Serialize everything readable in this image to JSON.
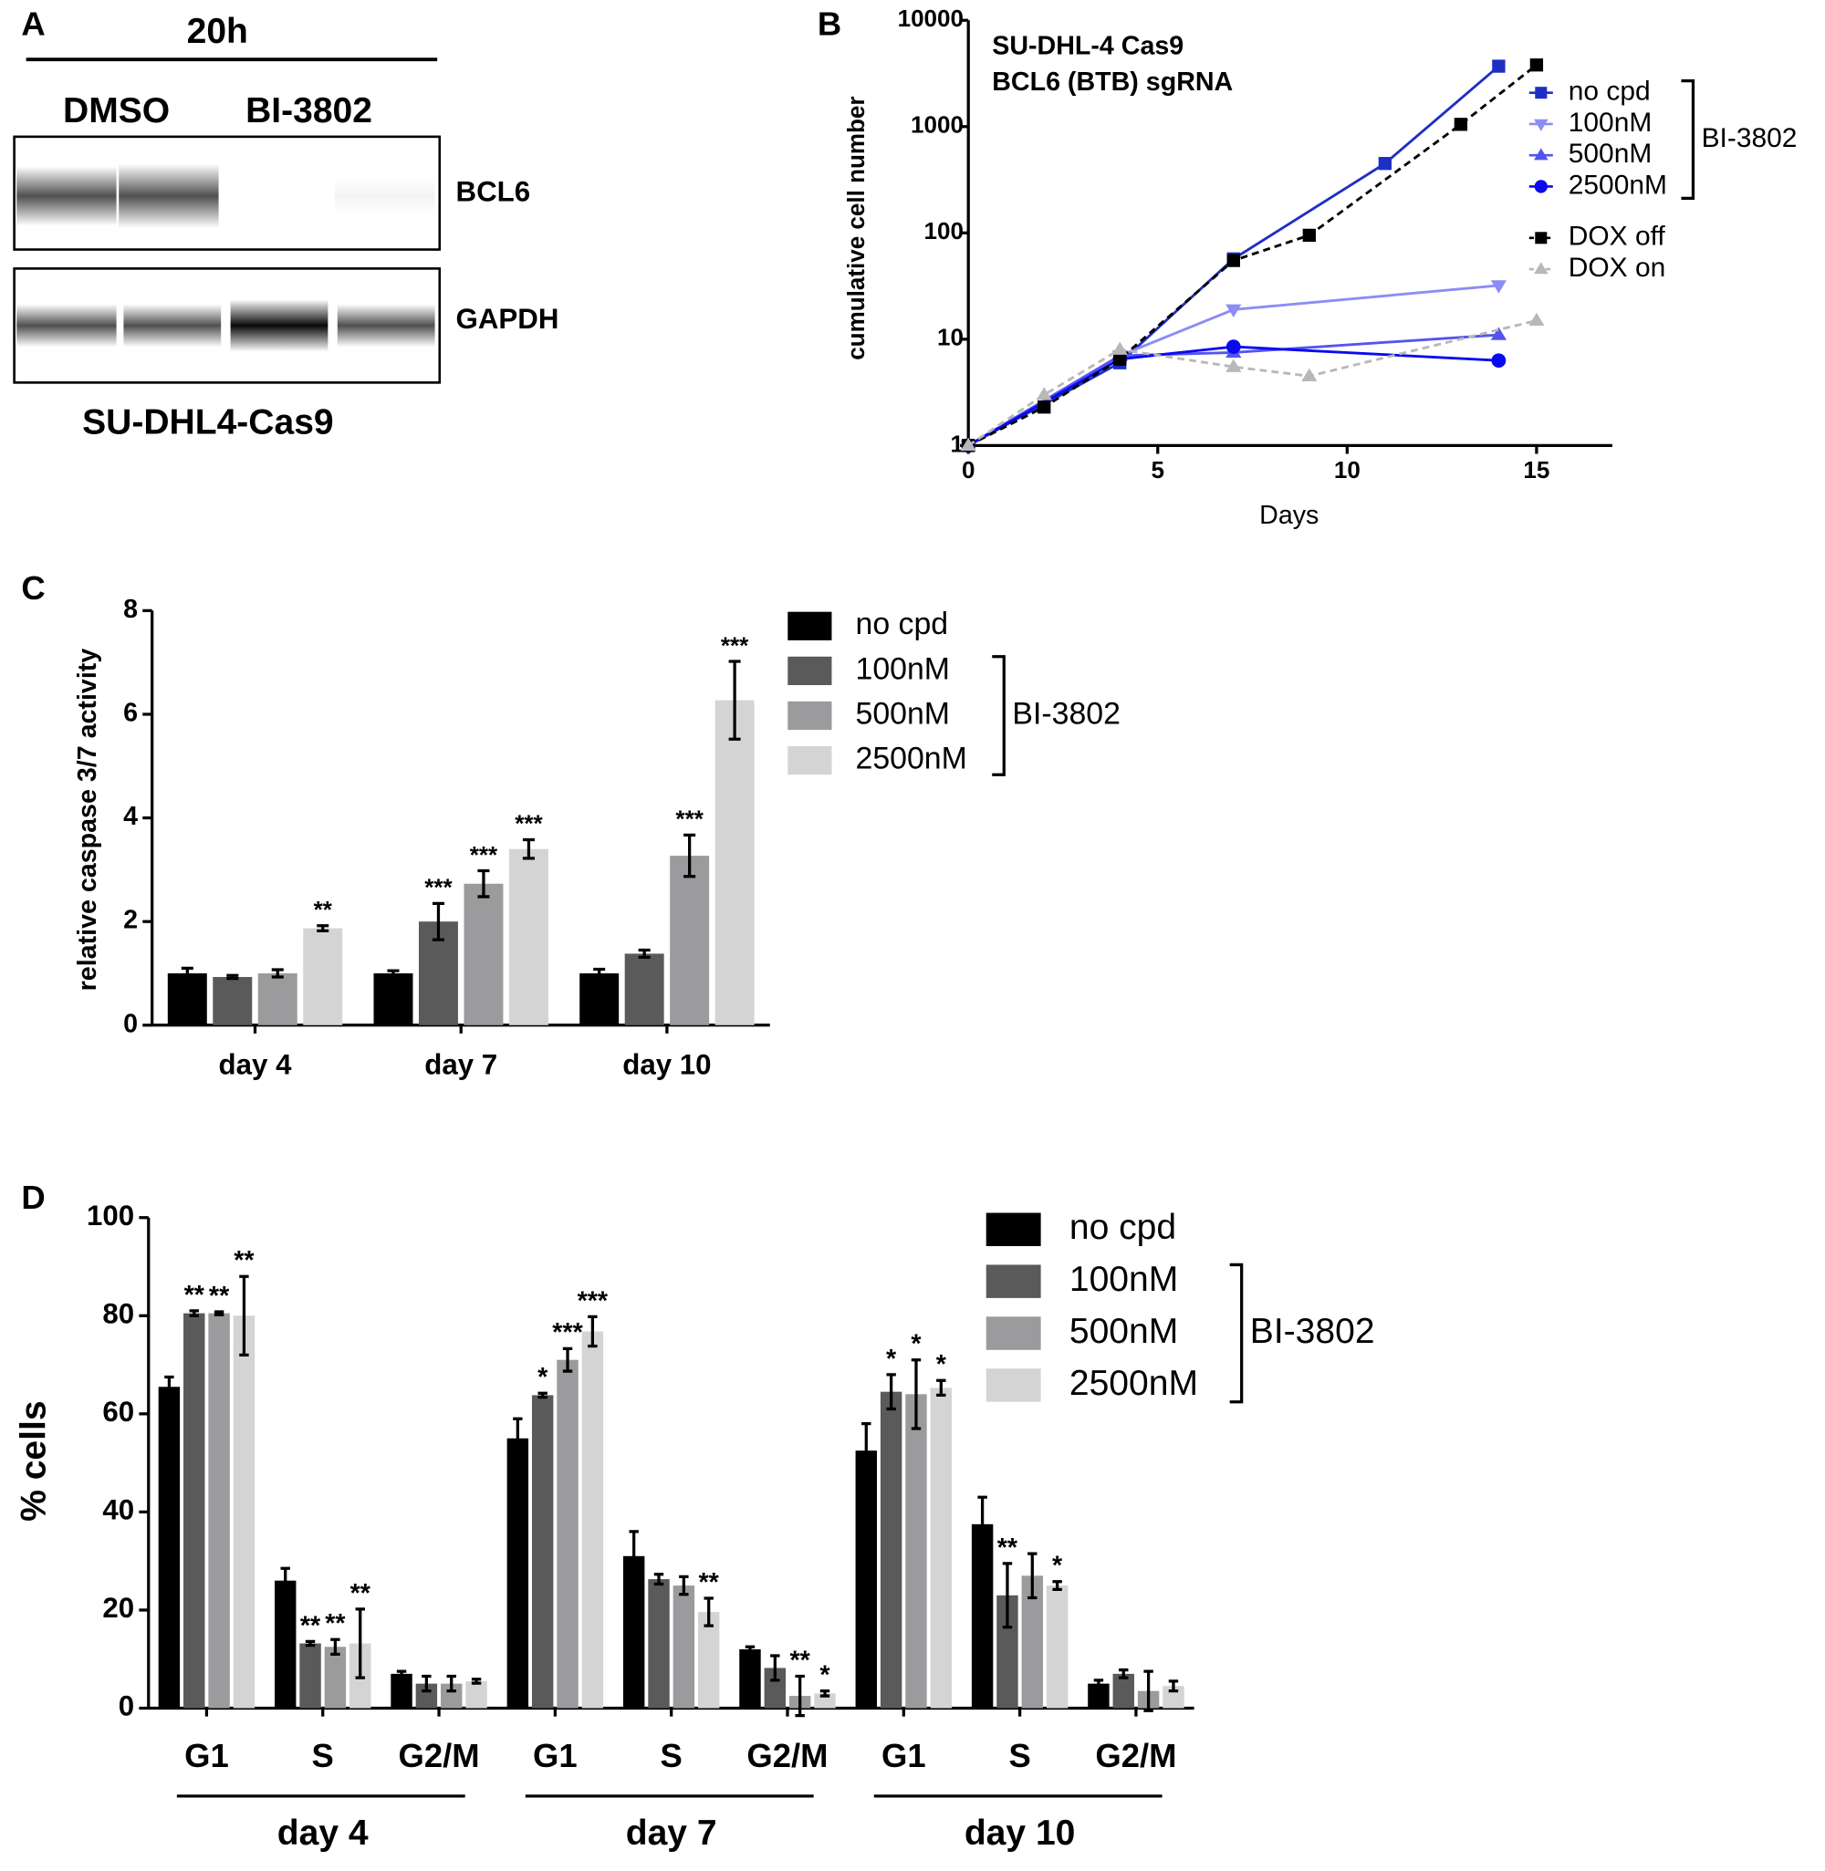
{
  "blot": {
    "panel": "A",
    "title": "20h",
    "lanes": [
      "DMSO",
      "BI-3802"
    ],
    "bands": [
      "BCL6",
      "GAPDH"
    ],
    "caption": "SU-DHL4-Cas9"
  },
  "chart_data": [
    {
      "type": "line",
      "panel": "B",
      "title": [
        "SU-DHL-4 Cas9",
        "BCL6 (BTB) sgRNA"
      ],
      "x_label": "Days",
      "y_label": "cumulative cell number",
      "log_y": true,
      "xlim": [
        0,
        17
      ],
      "xticks": [
        0,
        5,
        10,
        15
      ],
      "ylim": [
        1,
        10000
      ],
      "yticks": [
        1,
        10,
        100,
        1000,
        10000
      ],
      "bracket_label": "BI-3802",
      "series": [
        {
          "name": "no cpd",
          "color": "#1f2fc4",
          "marker": "square",
          "dashed": false,
          "bracketed": true,
          "x": [
            0,
            4,
            7,
            11,
            14
          ],
          "values": [
            1,
            6,
            57,
            450,
            3700
          ]
        },
        {
          "name": "100nM",
          "color": "#8c8cf5",
          "marker": "triangle-down",
          "dashed": false,
          "bracketed": true,
          "x": [
            0,
            4,
            7,
            14
          ],
          "values": [
            1,
            7,
            19,
            32
          ]
        },
        {
          "name": "500nM",
          "color": "#5454f0",
          "marker": "triangle-up",
          "dashed": false,
          "bracketed": true,
          "x": [
            0,
            4,
            7,
            14
          ],
          "values": [
            1,
            7,
            7.5,
            11
          ]
        },
        {
          "name": "2500nM",
          "color": "#0a0af0",
          "marker": "circle",
          "dashed": false,
          "bracketed": true,
          "x": [
            0,
            4,
            7,
            14
          ],
          "values": [
            1,
            6.5,
            8.5,
            6.3
          ]
        },
        {
          "name": "DOX off",
          "color": "#000000",
          "marker": "square",
          "dashed": true,
          "bracketed": false,
          "x": [
            0,
            2,
            4,
            7,
            9,
            13,
            15
          ],
          "values": [
            1,
            2.3,
            6.5,
            55,
            95,
            1050,
            3800
          ]
        },
        {
          "name": "DOX on",
          "color": "#b8b8b8",
          "marker": "triangle-up",
          "dashed": true,
          "bracketed": false,
          "x": [
            0,
            2,
            4,
            7,
            9,
            15
          ],
          "values": [
            1,
            3,
            8,
            5.5,
            4.5,
            15
          ]
        }
      ]
    },
    {
      "type": "bar",
      "panel": "C",
      "y_label": "relative caspase 3/7 activity",
      "ylim": [
        0,
        8
      ],
      "yticks": [
        0,
        2,
        4,
        6,
        8
      ],
      "categories": [
        "day 4",
        "day 7",
        "day 10"
      ],
      "bracket_label": "BI-3802",
      "series": [
        {
          "name": "no cpd",
          "color": "#000000",
          "bracketed": false,
          "values": [
            1.0,
            1.0,
            1.0
          ],
          "errors": [
            0.1,
            0.05,
            0.08
          ],
          "stars": [
            null,
            null,
            null
          ]
        },
        {
          "name": "100nM",
          "color": "#5a5a5a",
          "bracketed": true,
          "values": [
            0.93,
            2.0,
            1.38
          ],
          "errors": [
            0.03,
            0.35,
            0.07
          ],
          "stars": [
            null,
            "***",
            null
          ]
        },
        {
          "name": "500nM",
          "color": "#9b9b9d",
          "bracketed": true,
          "values": [
            1.0,
            2.73,
            3.27
          ],
          "errors": [
            0.07,
            0.25,
            0.4
          ],
          "stars": [
            null,
            "***",
            "***"
          ]
        },
        {
          "name": "2500nM",
          "color": "#d4d4d4",
          "bracketed": true,
          "values": [
            1.87,
            3.4,
            6.27
          ],
          "errors": [
            0.05,
            0.18,
            0.75
          ],
          "stars": [
            "**",
            "***",
            "***"
          ]
        }
      ]
    },
    {
      "type": "bar",
      "panel": "D",
      "y_label": "% cells",
      "ylim": [
        0,
        100
      ],
      "yticks": [
        0,
        20,
        40,
        60,
        80,
        100
      ],
      "categories": [
        "G1",
        "S",
        "G2/M",
        "G1",
        "S",
        "G2/M",
        "G1",
        "S",
        "G2/M"
      ],
      "groups": [
        "day 4",
        "day 7",
        "day 10"
      ],
      "bracket_label": "BI-3802",
      "series": [
        {
          "name": "no cpd",
          "color": "#000000",
          "bracketed": false,
          "values": [
            65.5,
            26,
            7,
            55,
            31,
            12,
            52.5,
            37.5,
            5
          ],
          "errors": [
            2,
            2.5,
            0.5,
            4,
            5,
            0.5,
            5.5,
            5.5,
            0.7
          ],
          "stars": [
            null,
            null,
            null,
            null,
            null,
            null,
            null,
            null,
            null
          ]
        },
        {
          "name": "100nM",
          "color": "#5a5a5a",
          "bracketed": true,
          "values": [
            80.5,
            13.2,
            5,
            63.8,
            26.3,
            8.2,
            64.5,
            23,
            7
          ],
          "errors": [
            0.5,
            0.4,
            1.5,
            0.4,
            1,
            2.5,
            3.5,
            6.5,
            0.8
          ],
          "stars": [
            "**",
            "**",
            null,
            "*",
            null,
            null,
            "*",
            "**",
            null
          ]
        },
        {
          "name": "500nM",
          "color": "#9b9b9d",
          "bracketed": true,
          "values": [
            80.5,
            12.5,
            5,
            71,
            25,
            2.5,
            64,
            27,
            3.5
          ],
          "errors": [
            0.3,
            1.5,
            1.5,
            2.3,
            1.8,
            4,
            7,
            4.5,
            4
          ],
          "stars": [
            "**",
            "**",
            null,
            "***",
            null,
            "**",
            "*",
            null,
            null
          ]
        },
        {
          "name": "2500nM",
          "color": "#d4d4d4",
          "bracketed": true,
          "values": [
            80,
            13.2,
            5.5,
            76.8,
            19.6,
            3,
            65.3,
            25,
            4.5
          ],
          "errors": [
            8,
            7,
            0.4,
            3,
            2.8,
            0.5,
            1.5,
            0.8,
            1
          ],
          "stars": [
            "**",
            "**",
            null,
            "***",
            "**",
            "*",
            "*",
            "*",
            null
          ]
        }
      ]
    }
  ]
}
